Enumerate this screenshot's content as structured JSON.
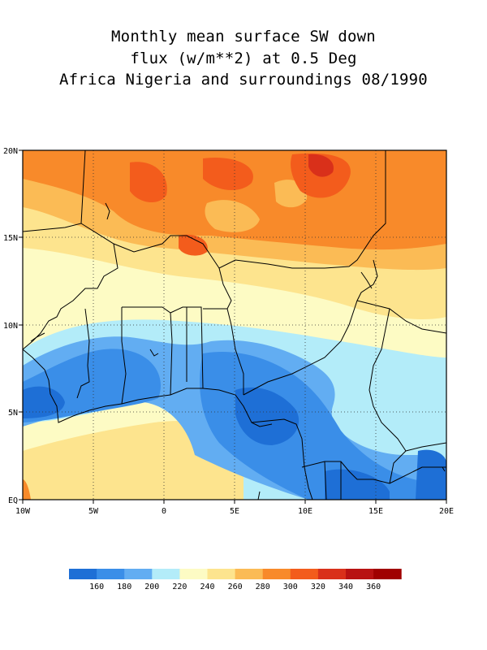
{
  "title": {
    "line1": "Monthly mean surface SW down",
    "line2": "flux (w/m**2) at 0.5 Deg",
    "line3": "Africa Nigeria and surroundings 08/1990"
  },
  "map": {
    "lat_range": [
      0,
      20
    ],
    "lon_range": [
      -10,
      20
    ],
    "lat_ticks": [
      "EQ",
      "5N",
      "10N",
      "15N",
      "20N"
    ],
    "lon_ticks": [
      "10W",
      "5W",
      "0",
      "5E",
      "10E",
      "15E",
      "20E"
    ],
    "grid": true
  },
  "colorbar": {
    "labels": [
      "160",
      "180",
      "200",
      "220",
      "240",
      "260",
      "280",
      "300",
      "320",
      "340",
      "360"
    ],
    "colors": [
      "#1e6fd6",
      "#3a8ee8",
      "#62adf2",
      "#b3ecf9",
      "#fdfbc4",
      "#fde48e",
      "#fbbb55",
      "#f88a2a",
      "#f35c1c",
      "#d9301a",
      "#b81212",
      "#a00000"
    ]
  }
}
